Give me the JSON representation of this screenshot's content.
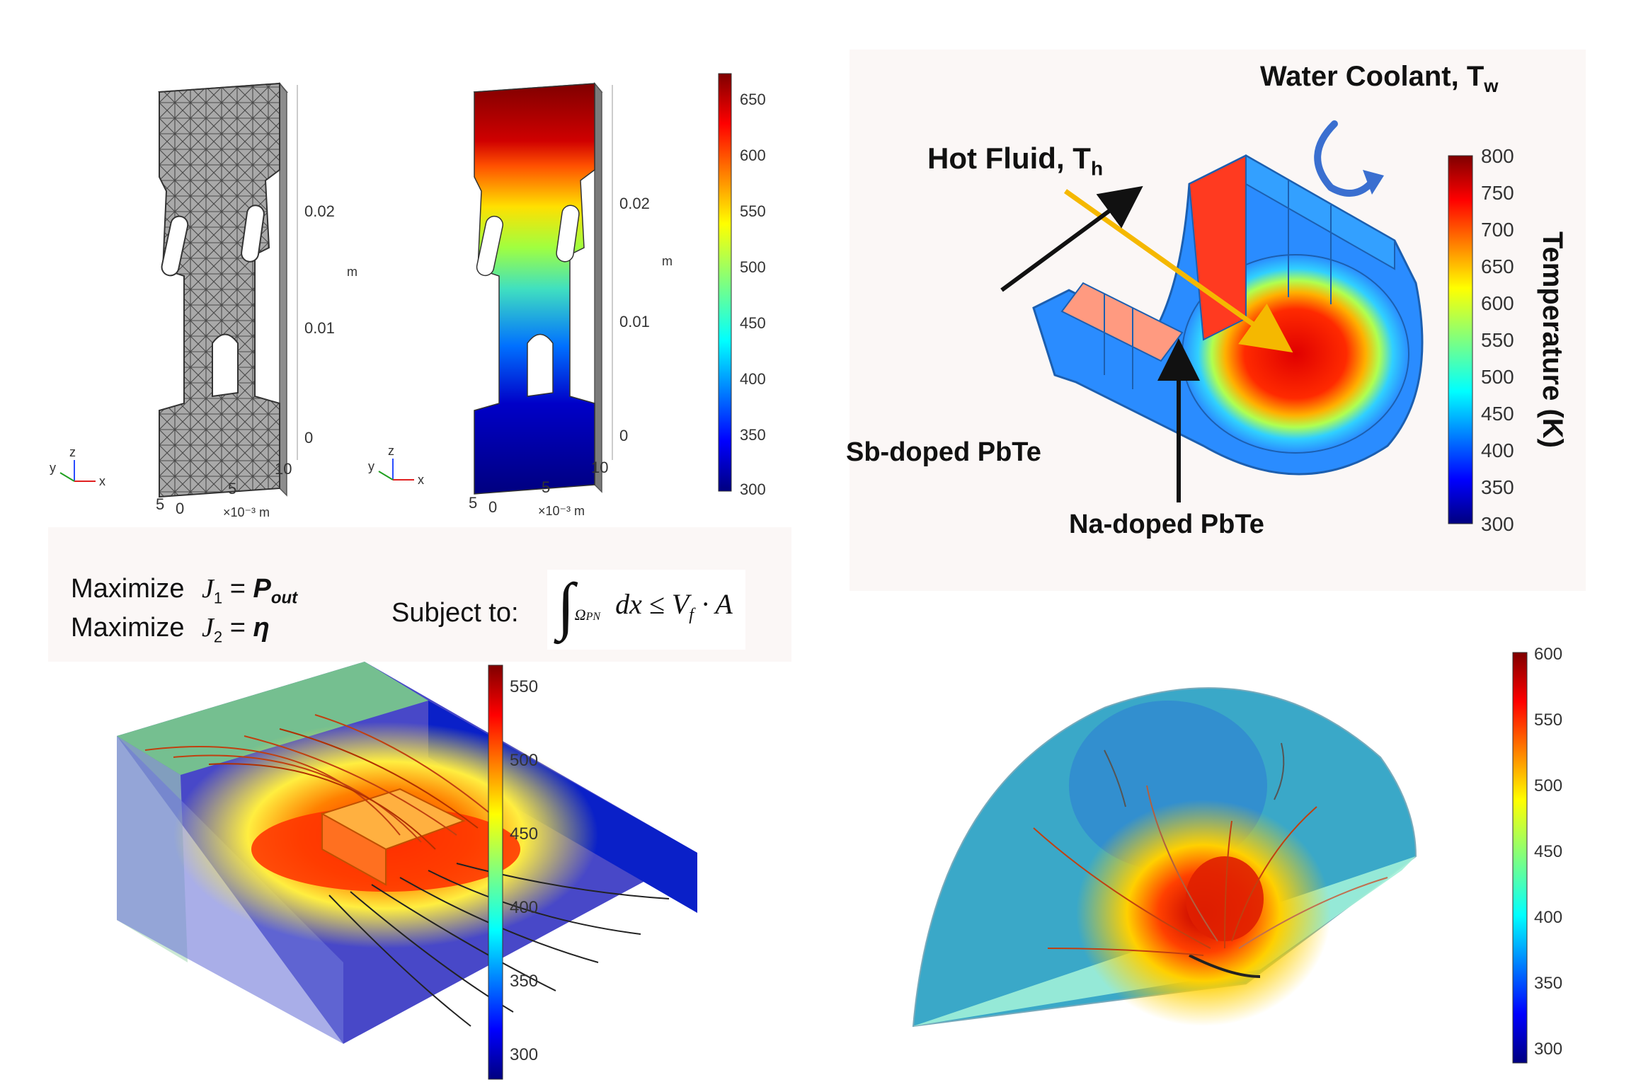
{
  "panel_mesh": {
    "z_ticks": [
      "0.02",
      "0.01",
      "0"
    ],
    "z_unit": "m",
    "x_ticks": [
      "5",
      "0",
      "5",
      "10"
    ],
    "x_unit": "×10⁻³ m",
    "triad": {
      "y": "y",
      "z": "z",
      "x": "x"
    }
  },
  "panel_temp": {
    "z_ticks": [
      "0.02",
      "0.01",
      "0"
    ],
    "z_unit": "m",
    "x_ticks": [
      "5",
      "0",
      "5",
      "10"
    ],
    "x_unit": "×10⁻³ m",
    "triad": {
      "y": "y",
      "z": "z",
      "x": "x"
    },
    "colorbar_ticks": [
      "650",
      "600",
      "550",
      "500",
      "450",
      "400",
      "350",
      "300"
    ]
  },
  "panel_tube": {
    "label_water": "Water Coolant, T",
    "label_water_sub": "w",
    "label_hot": "Hot Fluid, T",
    "label_hot_sub": "h",
    "label_sb": "Sb-doped PbTe",
    "label_na": "Na-doped PbTe",
    "colorbar_title": "Temperature (K)",
    "colorbar_ticks": [
      "800",
      "750",
      "700",
      "650",
      "600",
      "550",
      "500",
      "450",
      "400",
      "350",
      "300"
    ]
  },
  "equations": {
    "maximize": "Maximize",
    "j1": "J",
    "j1_sub": "1",
    "eq1_rhs": "P",
    "eq1_rhs_sub": "out",
    "j2": "J",
    "j2_sub": "2",
    "eq2_rhs": "η",
    "equals": "=",
    "subject_to": "Subject to:",
    "integral": "∫",
    "domain": "Ω",
    "domain_sub": "PN",
    "integrand": "dx ≤ V",
    "vf_sub": "f",
    "rhs": "· A"
  },
  "panel_box": {
    "colorbar_ticks": [
      "550",
      "500",
      "450",
      "400",
      "350",
      "300"
    ]
  },
  "panel_fan": {
    "colorbar_ticks": [
      "600",
      "550",
      "500",
      "450",
      "400",
      "350",
      "300"
    ]
  },
  "colors": {
    "jet_low": "#00007f",
    "jet_mid": "#7fff7f",
    "jet_high": "#7f0000",
    "coolant_arrow": "#3a6fd0",
    "hot_arrow": "#f5b800"
  }
}
